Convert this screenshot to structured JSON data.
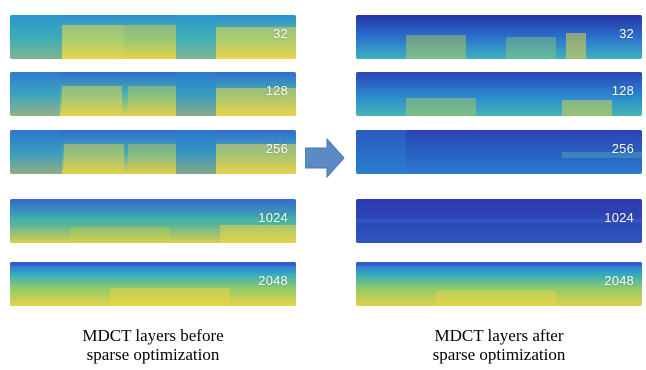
{
  "layers_before": [
    {
      "label": "32"
    },
    {
      "label": "128"
    },
    {
      "label": "256"
    },
    {
      "label": "1024"
    },
    {
      "label": "2048"
    }
  ],
  "layers_after": [
    {
      "label": "32"
    },
    {
      "label": "128"
    },
    {
      "label": "256"
    },
    {
      "label": "1024"
    },
    {
      "label": "2048"
    }
  ],
  "captions": {
    "before_line1": "MDCT layers before",
    "before_line2": "sparse optimization",
    "after_line1": "MDCT layers after",
    "after_line2": "sparse optimization"
  },
  "colors": {
    "arrow": "#5b8ac4",
    "low_energy": "#2b3aa8",
    "mid_energy": "#25a6c8",
    "high_energy": "#f1d63a"
  }
}
